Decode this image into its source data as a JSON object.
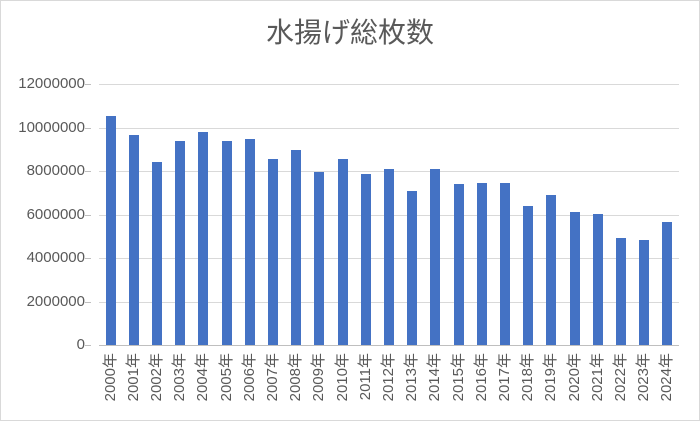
{
  "style": {
    "bar_color": "#4472C4",
    "gridline_color": "#D9D9D9",
    "axis_line_color": "#BFBFBF",
    "text_color": "#595959",
    "chart_border_color": "#D9D9D9",
    "background_color": "#FFFFFF"
  },
  "chart_data": {
    "type": "bar",
    "title": "水揚げ総枚数",
    "xlabel": "",
    "ylabel": "",
    "categories": [
      "2000年",
      "2001年",
      "2002年",
      "2003年",
      "2004年",
      "2005年",
      "2006年",
      "2007年",
      "2008年",
      "2009年",
      "2010年",
      "2011年",
      "2012年",
      "2013年",
      "2014年",
      "2015年",
      "2016年",
      "2017年",
      "2018年",
      "2019年",
      "2020年",
      "2021年",
      "2022年",
      "2023年",
      "2024年"
    ],
    "values": [
      10550000,
      9650000,
      8400000,
      9400000,
      9800000,
      9400000,
      9450000,
      8550000,
      8950000,
      7950000,
      8550000,
      7850000,
      8100000,
      7100000,
      8100000,
      7400000,
      7450000,
      7450000,
      6400000,
      6900000,
      6100000,
      6000000,
      4900000,
      4850000,
      5650000
    ],
    "ylim": [
      0,
      12000000
    ],
    "ytick_interval": 2000000,
    "ytick_labels": [
      "0",
      "2000000",
      "4000000",
      "6000000",
      "8000000",
      "10000000",
      "12000000"
    ],
    "grid": true,
    "legend": false
  }
}
